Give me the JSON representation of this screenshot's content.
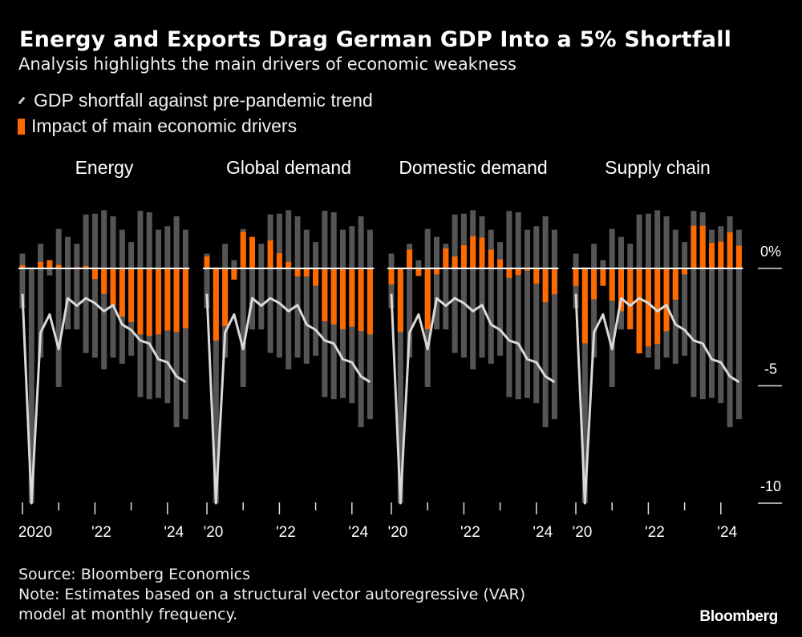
{
  "header": {
    "title": "Energy and Exports Drag German GDP Into a 5% Shortfall",
    "subtitle": "Analysis highlights the main drivers of economic weakness"
  },
  "legend": {
    "line_label": "GDP shortfall against pre-pandemic trend",
    "bar_label": "Impact of main economic drivers"
  },
  "footer": {
    "source": "Source: Bloomberg Economics",
    "note_line1": "Note: Estimates based on a structural vector autoregressive (VAR)",
    "note_line2": "model at monthly frequency.",
    "logo": "Bloomberg"
  },
  "colors": {
    "background": "#000000",
    "driver_bar": "#ff6a00",
    "range_bar": "#555555",
    "gdp_line": "#d9d9d9",
    "zero_line": "#ffffff"
  },
  "chart_data": {
    "type": "bar",
    "grid": false,
    "ylim": [
      -10,
      2.5
    ],
    "y_axis": {
      "position": "right",
      "ticks": [
        0,
        -5,
        -10
      ],
      "tick_labels": [
        "0%",
        "-5",
        "-10"
      ]
    },
    "categories": [
      "2020Q1",
      "2020Q2",
      "2020Q3",
      "2020Q4",
      "2021Q1",
      "2021Q2",
      "2021Q3",
      "2021Q4",
      "2022Q1",
      "2022Q2",
      "2022Q3",
      "2022Q4",
      "2023Q1",
      "2023Q2",
      "2023Q3",
      "2023Q4",
      "2024Q1",
      "2024Q2",
      "2024Q3"
    ],
    "gray_range": {
      "high": [
        0.63,
        0.05,
        1.05,
        0.35,
        1.68,
        1.34,
        1.05,
        2.3,
        2.33,
        2.48,
        2.22,
        1.65,
        1.12,
        2.45,
        2.39,
        1.65,
        1.8,
        2.22,
        1.65
      ],
      "low": [
        -1.7,
        -10,
        -3.8,
        -0.3,
        -5.05,
        -2.6,
        -2.6,
        -3.6,
        -3.8,
        -4.3,
        -3.8,
        -4.06,
        -3.72,
        -5.48,
        -5.57,
        -5.52,
        -5.74,
        -6.76,
        -6.42
      ]
    },
    "gdp_shortfall": {
      "name": "GDP shortfall against pre-pandemic trend",
      "values": [
        -1.08,
        -10,
        -2.73,
        -1.96,
        -3.44,
        -1.27,
        -1.59,
        -1.27,
        -1.48,
        -1.82,
        -1.56,
        -2.39,
        -2.62,
        -3.07,
        -3.2,
        -3.87,
        -4.0,
        -4.6,
        -4.84
      ]
    },
    "panels": [
      {
        "title": "Energy",
        "x_tick_labels": [
          "2020",
          "'22",
          "'24"
        ],
        "values": [
          0.13,
          0,
          0.28,
          0.35,
          0.15,
          0,
          0.05,
          0.1,
          -0.45,
          -1.08,
          -1.59,
          -2.05,
          -2.28,
          -2.81,
          -2.87,
          -2.81,
          -2.64,
          -2.7,
          -2.54
        ]
      },
      {
        "title": "Global demand",
        "x_tick_labels": [
          "'20",
          "'22",
          "'24"
        ],
        "values": [
          0.51,
          -3.07,
          -2.45,
          -0.48,
          1.56,
          1.34,
          0,
          1.19,
          0.65,
          0.28,
          -0.34,
          -0.34,
          -0.74,
          -2.25,
          -2.39,
          -2.59,
          -2.48,
          -2.67,
          -2.81
        ]
      },
      {
        "title": "Domestic demand",
        "x_tick_labels": [
          "'20",
          "'22",
          "'24"
        ],
        "values": [
          -0.68,
          -2.71,
          0.8,
          -0.32,
          -2.59,
          -0.25,
          0.85,
          0.51,
          0.99,
          1.37,
          1.31,
          0.8,
          0.38,
          -0.4,
          -0.28,
          -0.09,
          -0.65,
          -1.44,
          -1.1
        ]
      },
      {
        "title": "Supply chain",
        "x_tick_labels": [
          "'20",
          "'22",
          "'24"
        ],
        "values": [
          -0.74,
          -3.19,
          -1.31,
          -0.74,
          -1.37,
          -1.82,
          -2.59,
          -3.62,
          -3.32,
          -3.21,
          -2.67,
          -1.33,
          -0.25,
          1.82,
          1.82,
          1.08,
          1.14,
          1.54,
          0.97
        ]
      }
    ]
  }
}
